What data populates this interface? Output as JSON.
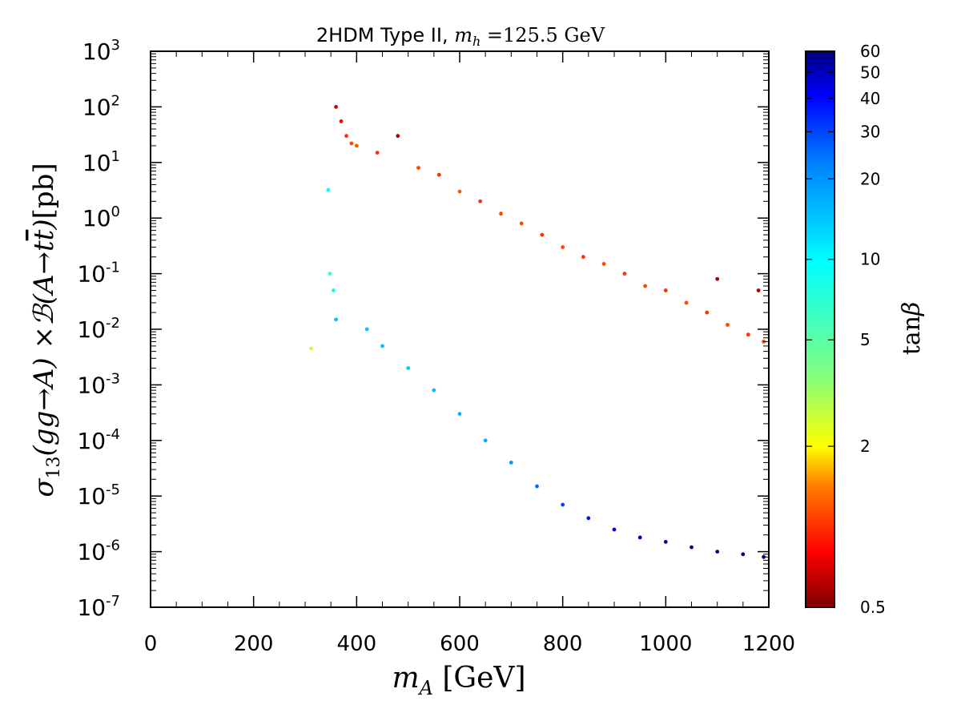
{
  "chart_data": {
    "type": "scatter",
    "title": {
      "prefix": "2HDM Type II, ",
      "var": "m",
      "var_sub": "h",
      "suffix": " =125.5 GeV"
    },
    "xlabel": {
      "var": "m",
      "var_sub": "A",
      "unit": " [GeV]"
    },
    "ylabel": {
      "sigma": "σ",
      "sigma_sub": "13",
      "prod": "(gg→A)",
      "times": " ×",
      "br": "ℬ",
      "decay": "(A→t",
      "tbar": "t",
      "close": ")",
      "unit": "[pb]"
    },
    "x_axis": {
      "scale": "linear",
      "range": [
        0,
        1200
      ],
      "ticks": [
        0,
        200,
        400,
        600,
        800,
        1000,
        1200
      ],
      "tick_labels": [
        "0",
        "200",
        "400",
        "600",
        "800",
        "1000",
        "1200"
      ]
    },
    "y_axis": {
      "scale": "log",
      "range": [
        1e-07,
        1000
      ],
      "ticks": [
        1e-07,
        1e-06,
        1e-05,
        0.0001,
        0.001,
        0.01,
        0.1,
        1,
        10,
        100,
        1000
      ],
      "tick_base": "10",
      "tick_exponents": [
        "-7",
        "-6",
        "-5",
        "-4",
        "-3",
        "-2",
        "-1",
        "0",
        "1",
        "2",
        "3"
      ]
    },
    "colorbar": {
      "label_fn": "tan",
      "label_var": "β",
      "scale": "log",
      "range": [
        0.5,
        60
      ],
      "ticks": [
        0.5,
        2,
        5,
        10,
        20,
        30,
        40,
        50,
        60
      ],
      "tick_labels": [
        "0.5",
        "2",
        "5",
        "10",
        "20",
        "30",
        "40",
        "50",
        "60"
      ],
      "colormap": [
        "#7f0000",
        "#ff0000",
        "#ff8000",
        "#ffff00",
        "#80ff80",
        "#00ffff",
        "#0080ff",
        "#0000ff",
        "#00007f"
      ]
    },
    "grid": false,
    "legend": "none",
    "series": [
      {
        "description_values": "scatter of scan points; columns are [m_A (GeV), cross-section (pb), tanβ]",
        "points": [
          [
            312,
            0.0045,
            2.7
          ],
          [
            345,
            3.2,
            9.0
          ],
          [
            348,
            0.1,
            7.0
          ],
          [
            355,
            0.05,
            8.2
          ],
          [
            360,
            0.015,
            14.0
          ],
          [
            360,
            100,
            0.7
          ],
          [
            370,
            55,
            0.8
          ],
          [
            380,
            30,
            1.0
          ],
          [
            390,
            22,
            1.1
          ],
          [
            400,
            20,
            1.2
          ],
          [
            440,
            15,
            1.0
          ],
          [
            480,
            30,
            0.6
          ],
          [
            520,
            8,
            1.1
          ],
          [
            560,
            6,
            1.0
          ],
          [
            600,
            3,
            1.2
          ],
          [
            640,
            2,
            1.0
          ],
          [
            680,
            1.2,
            1.1
          ],
          [
            720,
            0.8,
            1.1
          ],
          [
            760,
            0.5,
            1.0
          ],
          [
            800,
            0.3,
            1.1
          ],
          [
            840,
            0.2,
            1.0
          ],
          [
            880,
            0.15,
            1.1
          ],
          [
            920,
            0.1,
            1.0
          ],
          [
            960,
            0.06,
            1.1
          ],
          [
            1000,
            0.05,
            1.0
          ],
          [
            1040,
            0.03,
            1.1
          ],
          [
            1080,
            0.02,
            1.0
          ],
          [
            1120,
            0.012,
            1.1
          ],
          [
            1160,
            0.008,
            1.0
          ],
          [
            1190,
            0.006,
            1.1
          ],
          [
            1100,
            0.08,
            0.6
          ],
          [
            1180,
            0.05,
            0.6
          ],
          [
            420,
            0.01,
            14.0
          ],
          [
            450,
            0.005,
            15.0
          ],
          [
            500,
            0.002,
            14.0
          ],
          [
            550,
            0.0008,
            15.0
          ],
          [
            600,
            0.0003,
            16.0
          ],
          [
            650,
            0.0001,
            17.0
          ],
          [
            700,
            4e-05,
            20.0
          ],
          [
            750,
            1.5e-05,
            25.0
          ],
          [
            800,
            7e-06,
            30.0
          ],
          [
            850,
            4e-06,
            38.0
          ],
          [
            900,
            2.5e-06,
            45.0
          ],
          [
            950,
            1.8e-06,
            50.0
          ],
          [
            1000,
            1.5e-06,
            52.0
          ],
          [
            1050,
            1.2e-06,
            55.0
          ],
          [
            1100,
            1e-06,
            57.0
          ],
          [
            1150,
            9e-07,
            58.0
          ],
          [
            1190,
            8e-07,
            60.0
          ]
        ]
      }
    ]
  }
}
